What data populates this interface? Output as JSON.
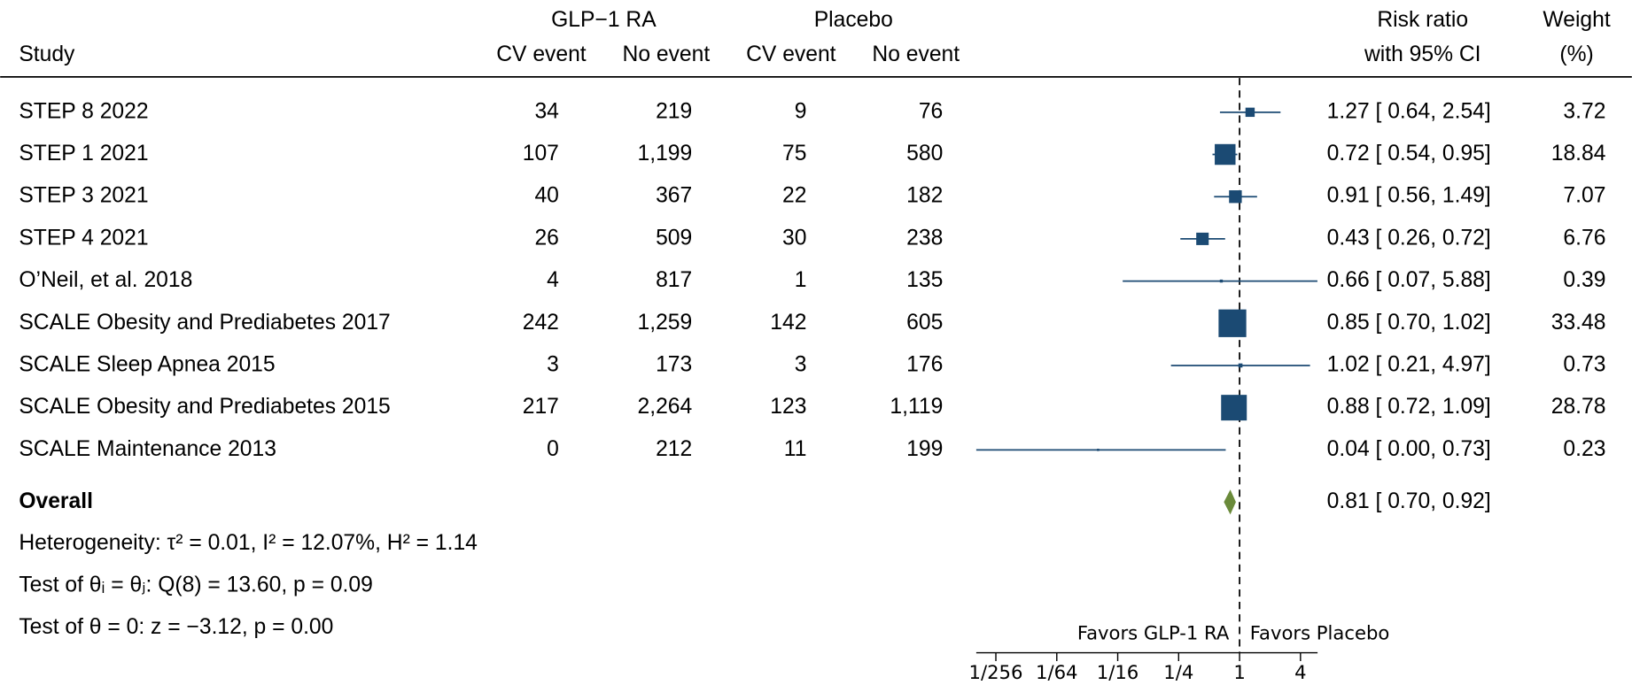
{
  "chart_data": {
    "type": "forest",
    "header_groups": [
      "GLP−1 RA",
      "Placebo"
    ],
    "columns": [
      "Study",
      "CV event",
      "No event",
      "CV event",
      "No event"
    ],
    "effect_header": [
      "Risk ratio",
      "with 95% CI"
    ],
    "weight_header": [
      "Weight",
      "(%)"
    ],
    "rows": [
      [
        "STEP 8 2022",
        "34",
        "219",
        "9",
        "76"
      ],
      [
        "STEP 1 2021",
        "107",
        "1,199",
        "75",
        "580"
      ],
      [
        "STEP 3 2021",
        "40",
        "367",
        "22",
        "182"
      ],
      [
        "STEP 4 2021",
        "26",
        "509",
        "30",
        "238"
      ],
      [
        "O’Neil, et al. 2018",
        "4",
        "817",
        "1",
        "135"
      ],
      [
        "SCALE Obesity and Prediabetes 2017",
        "242",
        "1,259",
        "142",
        "605"
      ],
      [
        "SCALE Sleep Apnea 2015",
        "3",
        "173",
        "3",
        "176"
      ],
      [
        "SCALE Obesity and Prediabetes 2015",
        "217",
        "2,264",
        "123",
        "1,119"
      ],
      [
        "SCALE Maintenance 2013",
        "0",
        "212",
        "11",
        "199"
      ]
    ],
    "effects": [
      1.27,
      0.72,
      0.91,
      0.43,
      0.66,
      0.85,
      1.02,
      0.88,
      0.04
    ],
    "ci_low": [
      0.64,
      0.54,
      0.56,
      0.26,
      0.07,
      0.7,
      0.21,
      0.72,
      0.0
    ],
    "ci_high": [
      2.54,
      0.95,
      1.49,
      0.72,
      5.88,
      1.02,
      4.97,
      1.09,
      0.73
    ],
    "value_labels": [
      "1.27 [ 0.64, 2.54]",
      "0.72 [ 0.54, 0.95]",
      "0.91 [ 0.56, 1.49]",
      "0.43 [ 0.26, 0.72]",
      "0.66 [ 0.07, 5.88]",
      "0.85 [ 0.70, 1.02]",
      "1.02 [ 0.21, 4.97]",
      "0.88 [ 0.72, 1.09]",
      "0.04 [ 0.00, 0.73]"
    ],
    "weights": [
      3.72,
      18.84,
      7.07,
      6.76,
      0.39,
      33.48,
      0.73,
      28.78,
      0.23
    ],
    "color": "#1b4a73",
    "overall": {
      "label": "Overall",
      "effect": 0.81,
      "ci_low": 0.7,
      "ci_high": 0.92,
      "value_label": "0.81 [ 0.70, 0.92]",
      "color": "#6a8a3a"
    },
    "notes": [
      "Heterogeneity: τ² = 0.01, I² = 12.07%, H² = 1.14",
      "Test of θᵢ = θⱼ: Q(8) = 13.60, p = 0.09",
      "Test of θ = 0: z = −3.12, p = 0.00"
    ],
    "favors": [
      "Favors GLP-1 RA",
      "Favors Placebo"
    ],
    "log_x": true,
    "xlim": [
      0.0025,
      5.9
    ],
    "xticks": [
      {
        "value": 0.00390625,
        "label": "1/256"
      },
      {
        "value": 0.015625,
        "label": "1/64"
      },
      {
        "value": 0.0625,
        "label": "1/16"
      },
      {
        "value": 0.25,
        "label": "1/4"
      },
      1,
      4
    ],
    "reference": 1
  }
}
